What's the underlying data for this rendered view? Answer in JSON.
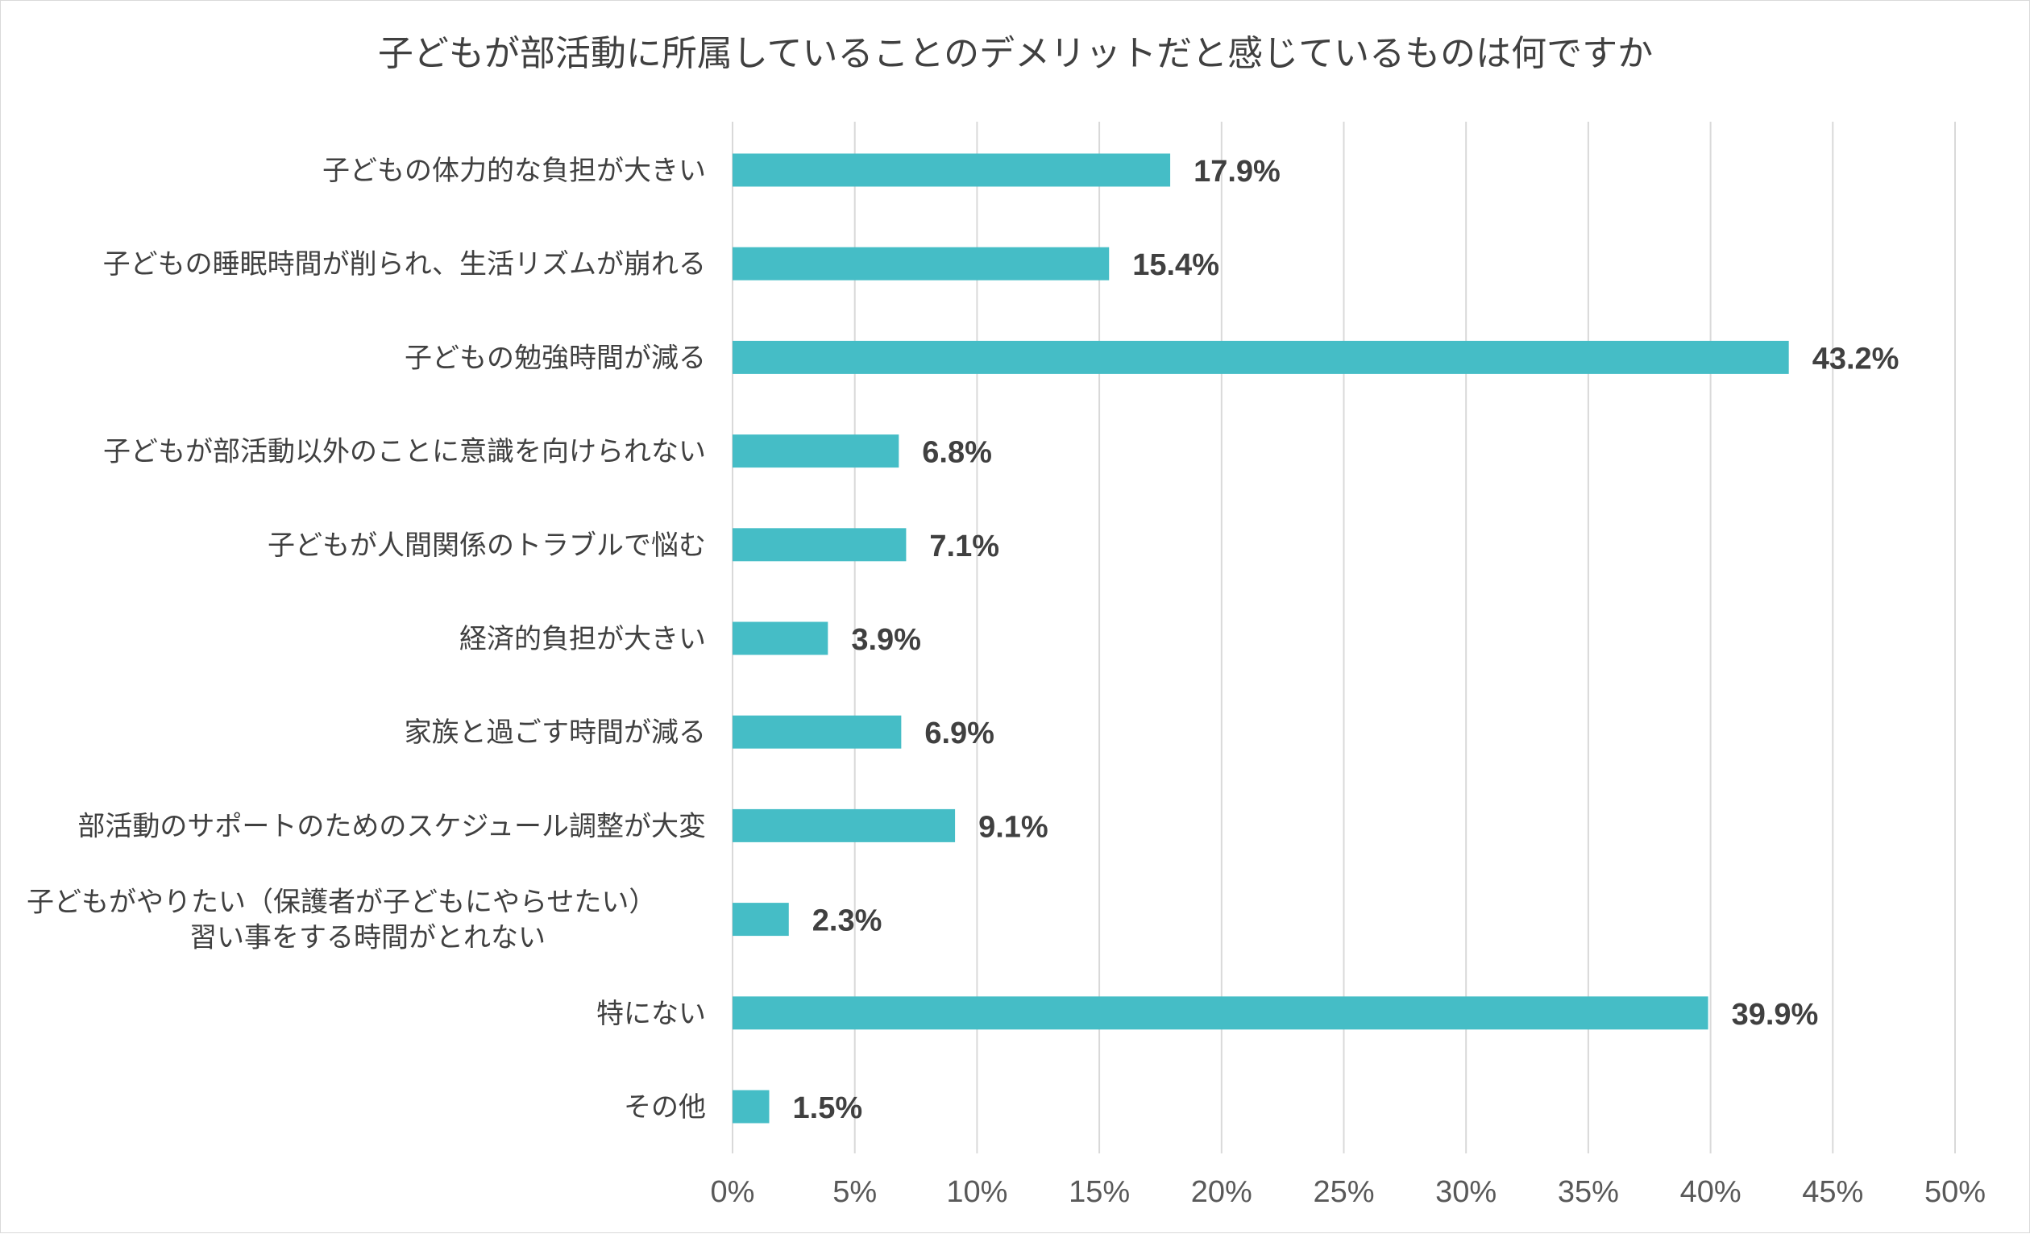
{
  "chart_data": {
    "type": "bar",
    "orientation": "horizontal",
    "title": "子どもが部活動に所属していることのデメリットだと感じているものは何ですか",
    "categories": [
      "子どもの体力的な負担が大きい",
      "子どもの睡眠時間が削られ、生活リズムが崩れる",
      "子どもの勉強時間が減る",
      "子どもが部活動以外のことに意識を向けられない",
      "子どもが人間関係のトラブルで悩む",
      "経済的負担が大きい",
      "家族と過ごす時間が減る",
      "部活動のサポートのためのスケジュール調整が大変",
      "子どもがやりたい（保護者が子どもにやらせたい）\n習い事をする時間がとれない",
      "特にない",
      "その他"
    ],
    "values": [
      17.9,
      15.4,
      43.2,
      6.8,
      7.1,
      3.9,
      6.9,
      9.1,
      2.3,
      39.9,
      1.5
    ],
    "data_labels": [
      "17.9%",
      "15.4%",
      "43.2%",
      "6.8%",
      "7.1%",
      "3.9%",
      "6.9%",
      "9.1%",
      "2.3%",
      "39.9%",
      "1.5%"
    ],
    "xlim": [
      0,
      50
    ],
    "x_ticks": [
      0,
      5,
      10,
      15,
      20,
      25,
      30,
      35,
      40,
      45,
      50
    ],
    "x_tick_labels": [
      "0%",
      "5%",
      "10%",
      "15%",
      "20%",
      "25%",
      "30%",
      "35%",
      "40%",
      "45%",
      "50%"
    ],
    "xlabel": "",
    "ylabel": "",
    "grid": "vertical",
    "legend": "none",
    "bar_color": "#45BDC6"
  },
  "colors": {
    "bar": "#45BDC6",
    "grid": "#d9d9d9",
    "text": "#404040",
    "tick_text": "#595959"
  }
}
